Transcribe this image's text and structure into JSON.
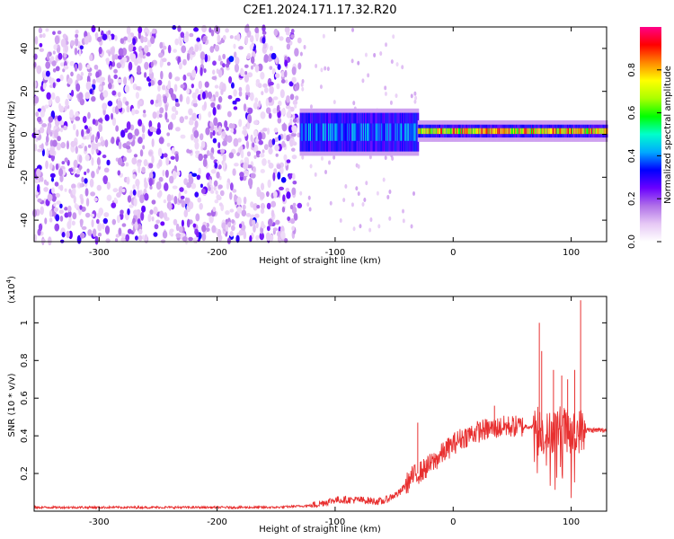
{
  "title": "C2E1.2024.171.17.32.R20",
  "chart_data": [
    {
      "type": "heatmap",
      "xlabel": "Height of straight line (km)",
      "ylabel": "Frequency (Hz)",
      "xlim": [
        -355,
        130
      ],
      "ylim": [
        -50,
        50
      ],
      "xticks": [
        -300,
        -200,
        -100,
        0,
        100
      ],
      "yticks": [
        -40,
        -20,
        0,
        20,
        40
      ],
      "xtick_labels": [
        "-300",
        "-200",
        "-100",
        "0",
        "100"
      ],
      "ytick_labels": [
        "-40",
        "-20",
        "0",
        "20",
        "40"
      ],
      "colorbar": {
        "label": "Normalized spectral amplitude",
        "range": [
          0,
          1
        ],
        "ticks": [
          0.0,
          0.2,
          0.4,
          0.6,
          0.8
        ],
        "tick_labels": [
          "0.0",
          "0.2",
          "0.4",
          "0.6",
          "0.8"
        ],
        "colors": [
          "#ffffff",
          "#e6c8f5",
          "#b070e8",
          "#6a00ff",
          "#0000ff",
          "#00aaff",
          "#00ffcc",
          "#00ff00",
          "#aaff00",
          "#ffff00",
          "#ff8800",
          "#ff0000",
          "#ff0088"
        ]
      },
      "regions": [
        {
          "x_range": [
            -355,
            -130
          ],
          "freq_range": [
            -50,
            50
          ],
          "amplitude": 0.15,
          "description_level": "noise"
        },
        {
          "x_range": [
            -130,
            -30
          ],
          "center_freq": 1,
          "half_width": 9,
          "amplitude": 0.45
        },
        {
          "x_range": [
            -30,
            130
          ],
          "center_freq": 1.5,
          "half_width": 3,
          "amplitude": 0.9
        }
      ],
      "grid": false
    },
    {
      "type": "line",
      "xlabel": "Height of straight line (km)",
      "ylabel": "SNR (10 * v/v)",
      "y_multiplier_label": "(x10",
      "y_multiplier_exp": "4",
      "xlim": [
        -355,
        130
      ],
      "ylim": [
        0,
        1.14
      ],
      "xticks": [
        -300,
        -200,
        -100,
        0,
        100
      ],
      "yticks": [
        0.2,
        0.4,
        0.6,
        0.8,
        1
      ],
      "xtick_labels": [
        "-300",
        "-200",
        "-100",
        "0",
        "100"
      ],
      "ytick_labels": [
        "0.2",
        "0.4",
        "0.6",
        "0.8",
        "1"
      ],
      "series": [
        {
          "color": "#e83030",
          "x": [
            -355,
            -300,
            -250,
            -200,
            -150,
            -120,
            -100,
            -80,
            -60,
            -45,
            -35,
            -25,
            -15,
            -5,
            5,
            15,
            25,
            35,
            45,
            55,
            65,
            72,
            78,
            85,
            92,
            100,
            108,
            115,
            130
          ],
          "y": [
            0.02,
            0.02,
            0.02,
            0.02,
            0.02,
            0.03,
            0.06,
            0.06,
            0.05,
            0.1,
            0.18,
            0.22,
            0.27,
            0.33,
            0.38,
            0.41,
            0.43,
            0.44,
            0.45,
            0.45,
            0.45,
            0.45,
            0.4,
            0.43,
            0.45,
            0.4,
            0.43,
            0.43,
            0.43
          ]
        }
      ],
      "spikes": [
        {
          "x": -30,
          "y": 0.47
        },
        {
          "x": 35,
          "y": 0.56
        },
        {
          "x": 73,
          "y": 1.0
        },
        {
          "x": 75,
          "y": 0.85
        },
        {
          "x": 85,
          "y": 0.75
        },
        {
          "x": 92,
          "y": 0.72
        },
        {
          "x": 97,
          "y": 0.7
        },
        {
          "x": 103,
          "y": 0.75
        },
        {
          "x": 108,
          "y": 1.12
        },
        {
          "x": 112,
          "y": 0.45
        }
      ],
      "grid": false
    }
  ]
}
